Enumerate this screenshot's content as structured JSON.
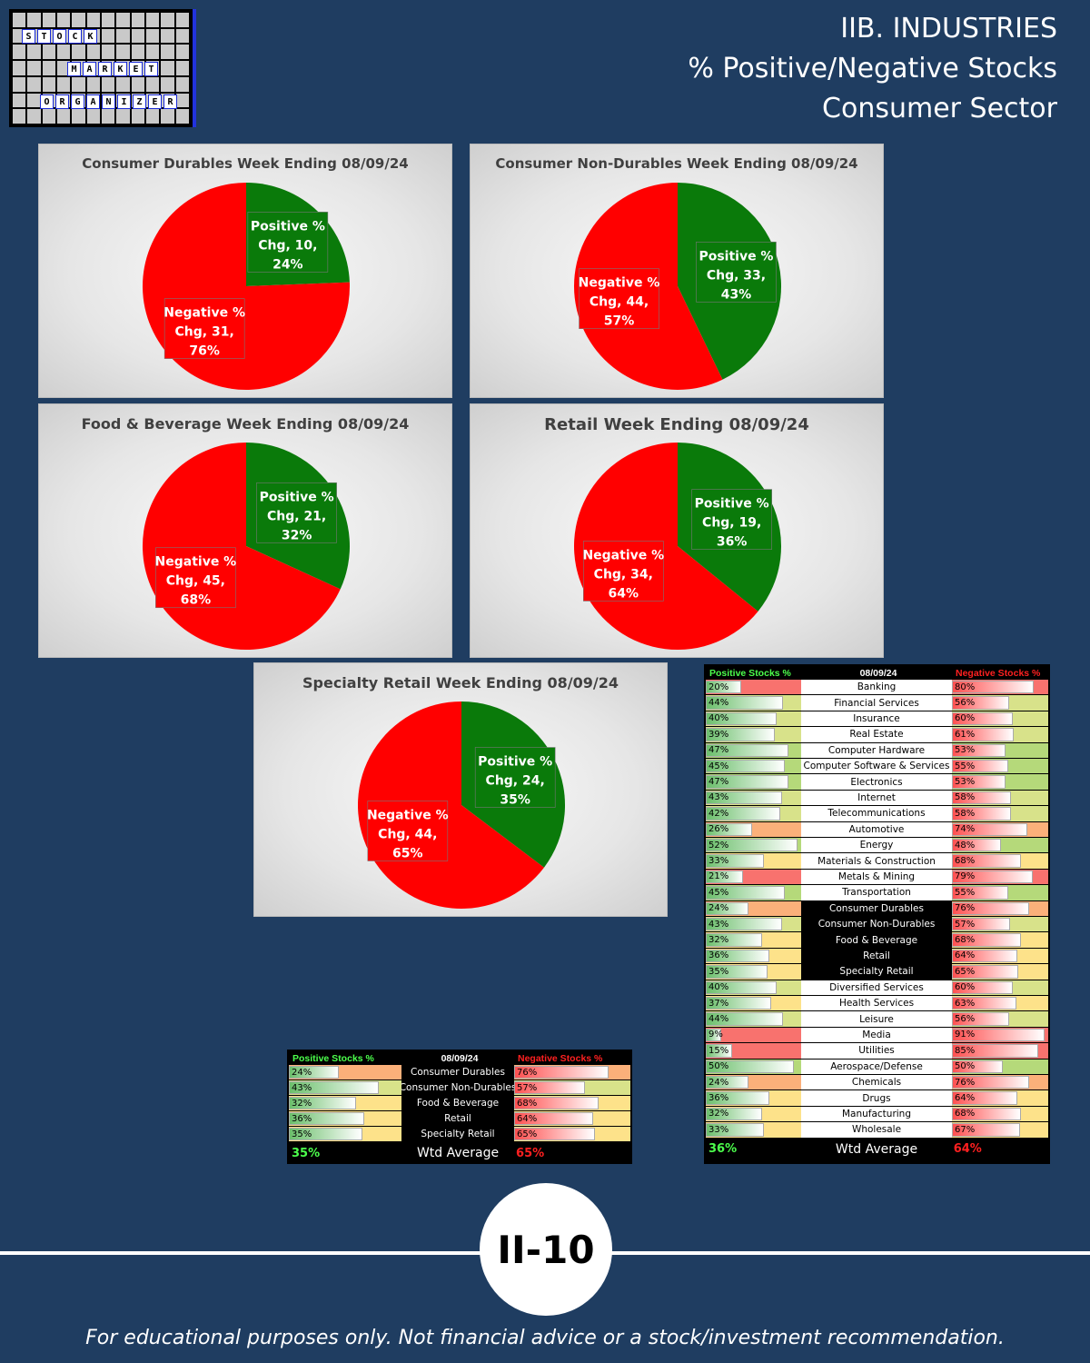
{
  "logo": {
    "words": [
      "STOCK",
      "MARKET",
      "ORGANIZER"
    ]
  },
  "header": {
    "line1": "IIB. INDUSTRIES",
    "line2": "% Positive/Negative Stocks",
    "line3": "Consumer Sector"
  },
  "colors": {
    "positive": "#0a7a0a",
    "negative": "#ff0000",
    "background": "#1f3d61"
  },
  "chart_data": [
    {
      "type": "pie",
      "title": "Consumer Durables Week Ending 08/09/24",
      "slices": [
        {
          "name": "Positive % Chg",
          "value": 10,
          "percent": 24
        },
        {
          "name": "Negative % Chg",
          "value": 31,
          "percent": 76
        }
      ]
    },
    {
      "type": "pie",
      "title": "Consumer Non-Durables Week Ending 08/09/24",
      "slices": [
        {
          "name": "Positive % Chg",
          "value": 33,
          "percent": 43
        },
        {
          "name": "Negative % Chg",
          "value": 44,
          "percent": 57
        }
      ]
    },
    {
      "type": "pie",
      "title": "Food & Beverage Week Ending 08/09/24",
      "slices": [
        {
          "name": "Positive % Chg",
          "value": 21,
          "percent": 32
        },
        {
          "name": "Negative % Chg",
          "value": 45,
          "percent": 68
        }
      ]
    },
    {
      "type": "pie",
      "title": "Retail Week Ending 08/09/24",
      "slices": [
        {
          "name": "Positive % Chg",
          "value": 19,
          "percent": 36
        },
        {
          "name": "Negative % Chg",
          "value": 34,
          "percent": 64
        }
      ]
    },
    {
      "type": "pie",
      "title": "Specialty Retail Week Ending 08/09/24",
      "slices": [
        {
          "name": "Positive % Chg",
          "value": 24,
          "percent": 35
        },
        {
          "name": "Negative % Chg",
          "value": 44,
          "percent": 65
        }
      ]
    },
    {
      "type": "table",
      "title": "08/09/24",
      "columns": [
        "Positive Stocks %",
        "08/09/24",
        "Negative Stocks %"
      ],
      "rows": [
        {
          "name": "Consumer Durables",
          "pos": 24,
          "neg": 76
        },
        {
          "name": "Consumer Non-Durables",
          "pos": 43,
          "neg": 57
        },
        {
          "name": "Food & Beverage",
          "pos": 32,
          "neg": 68
        },
        {
          "name": "Retail",
          "pos": 36,
          "neg": 64
        },
        {
          "name": "Specialty Retail",
          "pos": 35,
          "neg": 65
        }
      ],
      "average": {
        "label": "Wtd Average",
        "pos": "35%",
        "neg": "65%"
      }
    },
    {
      "type": "table",
      "title": "08/09/24",
      "columns": [
        "Positive Stocks %",
        "08/09/24",
        "Negative Stocks %"
      ],
      "rows": [
        {
          "name": "Banking",
          "pos": 20,
          "neg": 80
        },
        {
          "name": "Financial Services",
          "pos": 44,
          "neg": 56
        },
        {
          "name": "Insurance",
          "pos": 40,
          "neg": 60
        },
        {
          "name": "Real Estate",
          "pos": 39,
          "neg": 61
        },
        {
          "name": "Computer Hardware",
          "pos": 47,
          "neg": 53
        },
        {
          "name": "Computer Software & Services",
          "pos": 45,
          "neg": 55
        },
        {
          "name": "Electronics",
          "pos": 47,
          "neg": 53
        },
        {
          "name": "Internet",
          "pos": 43,
          "neg": 58
        },
        {
          "name": "Telecommunications",
          "pos": 42,
          "neg": 58
        },
        {
          "name": "Automotive",
          "pos": 26,
          "neg": 74
        },
        {
          "name": "Energy",
          "pos": 52,
          "neg": 48
        },
        {
          "name": "Materials & Construction",
          "pos": 33,
          "neg": 68
        },
        {
          "name": "Metals & Mining",
          "pos": 21,
          "neg": 79
        },
        {
          "name": "Transportation",
          "pos": 45,
          "neg": 55
        },
        {
          "name": "Consumer Durables",
          "pos": 24,
          "neg": 76,
          "highlight": true
        },
        {
          "name": "Consumer Non-Durables",
          "pos": 43,
          "neg": 57,
          "highlight": true
        },
        {
          "name": "Food & Beverage",
          "pos": 32,
          "neg": 68,
          "highlight": true
        },
        {
          "name": "Retail",
          "pos": 36,
          "neg": 64,
          "highlight": true
        },
        {
          "name": "Specialty Retail",
          "pos": 35,
          "neg": 65,
          "highlight": true
        },
        {
          "name": "Diversified Services",
          "pos": 40,
          "neg": 60
        },
        {
          "name": "Health Services",
          "pos": 37,
          "neg": 63
        },
        {
          "name": "Leisure",
          "pos": 44,
          "neg": 56
        },
        {
          "name": "Media",
          "pos": 9,
          "neg": 91
        },
        {
          "name": "Utilities",
          "pos": 15,
          "neg": 85
        },
        {
          "name": "Aerospace/Defense",
          "pos": 50,
          "neg": 50
        },
        {
          "name": "Chemicals",
          "pos": 24,
          "neg": 76
        },
        {
          "name": "Drugs",
          "pos": 36,
          "neg": 64
        },
        {
          "name": "Manufacturing",
          "pos": 32,
          "neg": 68
        },
        {
          "name": "Wholesale",
          "pos": 33,
          "neg": 67
        }
      ],
      "average": {
        "label": "Wtd Average",
        "pos": "36%",
        "neg": "64%"
      }
    }
  ],
  "badge": "II-10",
  "footer": "For educational purposes only. Not financial advice or a stock/investment recommendation."
}
